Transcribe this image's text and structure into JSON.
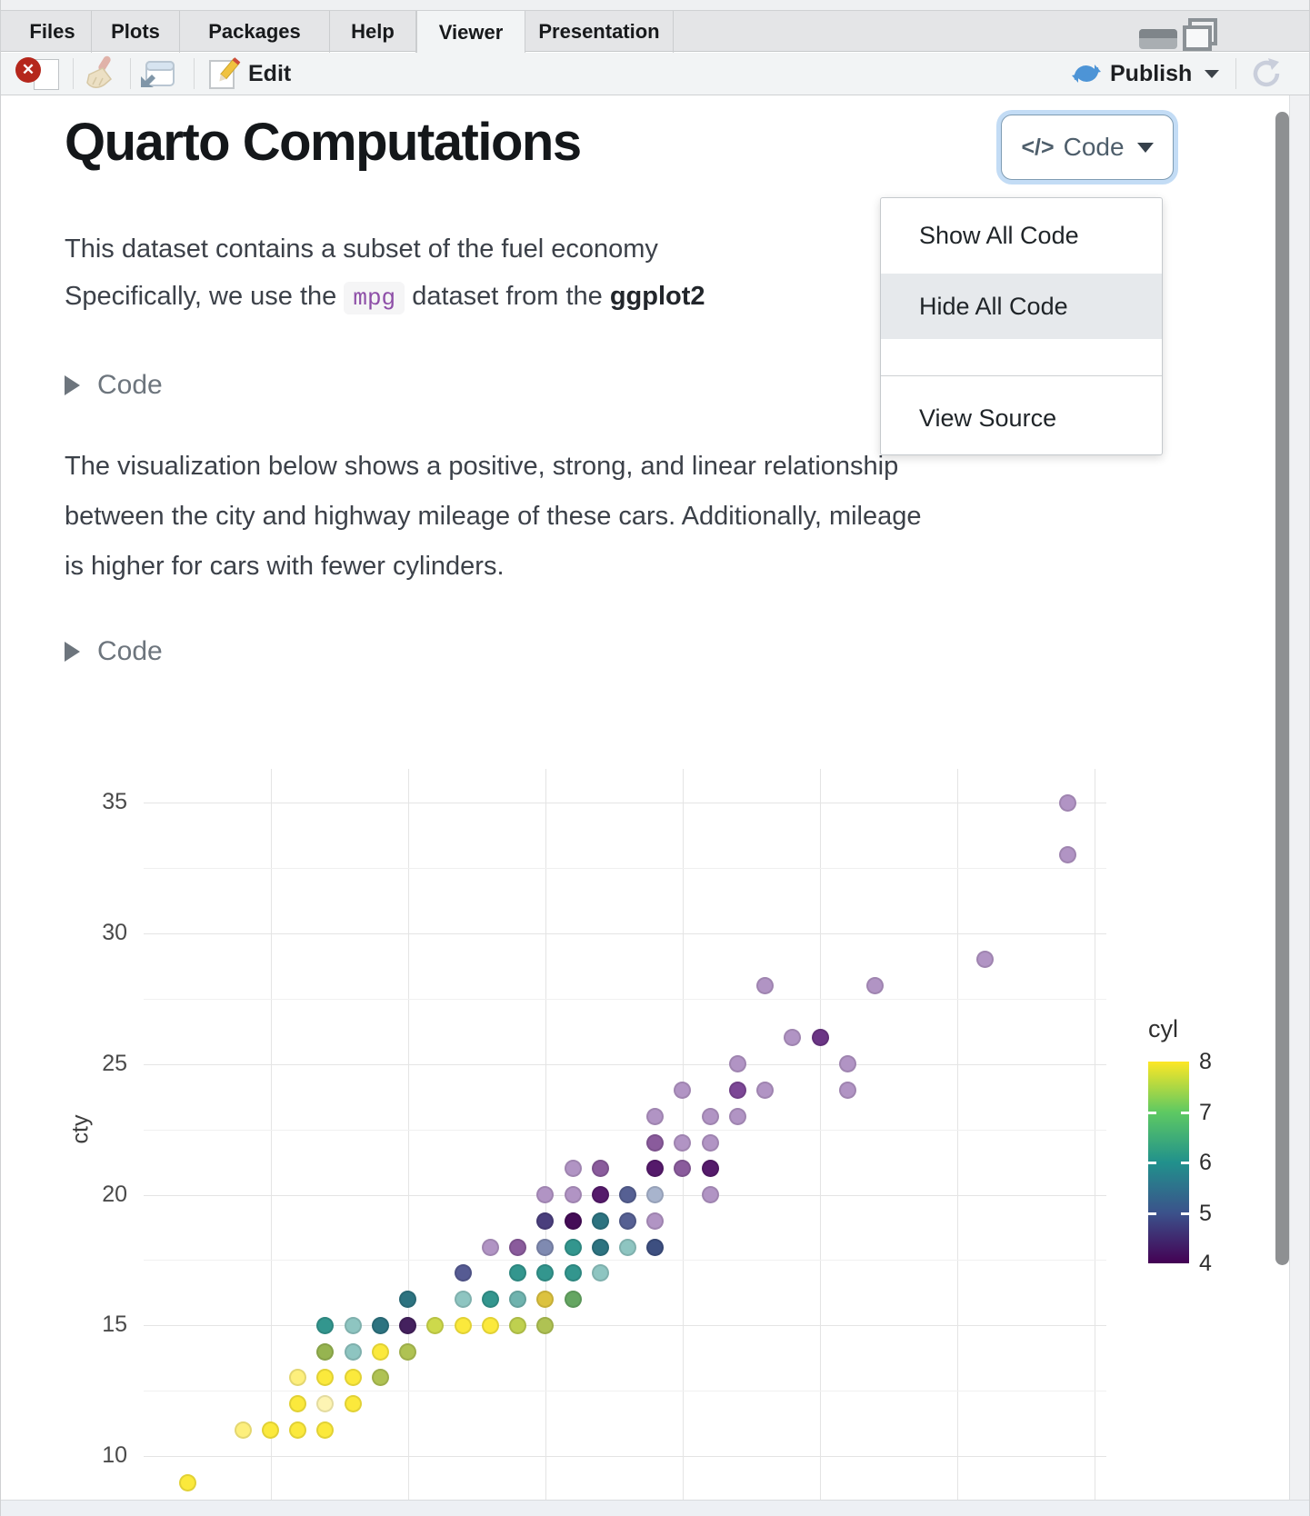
{
  "window": {
    "tabs": [
      {
        "label": "Files",
        "active": false
      },
      {
        "label": "Plots",
        "active": false
      },
      {
        "label": "Packages",
        "active": false
      },
      {
        "label": "Help",
        "active": false
      },
      {
        "label": "Viewer",
        "active": true
      },
      {
        "label": "Presentation",
        "active": false
      }
    ],
    "toolbar": {
      "edit_label": "Edit",
      "publish_label": "Publish",
      "icons": [
        "stop-icon",
        "broom-icon",
        "popout-icon",
        "edit-pencil-icon",
        "publish-icon",
        "refresh-icon"
      ]
    },
    "window_icons": [
      "minimize-icon",
      "maximize-icon"
    ]
  },
  "document": {
    "title": "Quarto Computations",
    "code_button": {
      "icon": "</>",
      "label": "Code"
    },
    "menu": {
      "items": [
        "Show All Code",
        "Hide All Code",
        "View Source"
      ],
      "highlighted": "Hide All Code"
    },
    "paragraph1": {
      "line1": "This dataset contains a subset of the fuel economy",
      "line2_prefix": "Specifically, we use the",
      "inline_code": "mpg",
      "line2_mid": "dataset from the",
      "line2_bold": "ggplot2"
    },
    "code_fold_label": "Code",
    "paragraph2_lines": [
      "The visualization below shows a positive, strong, and linear relationship",
      "between the city and highway mileage of these cars. Additionally, mileage",
      "is higher for cars with fewer cylinders."
    ]
  },
  "chart_data": {
    "type": "scatter",
    "title": "",
    "xlabel": "",
    "ylabel": "cty",
    "x_gridlines": [
      15,
      20,
      25,
      30,
      35,
      40,
      45
    ],
    "y_ticks": [
      35,
      30,
      25,
      20,
      15,
      10
    ],
    "y_minor_gridlines": [
      12.5,
      17.5,
      22.5,
      27.5,
      32.5
    ],
    "xlim": [
      10.4,
      45.4
    ],
    "ylim": [
      7.1,
      36.3
    ],
    "legend": {
      "title": "cyl",
      "position": "right",
      "tick_labels": [
        8,
        7,
        6,
        5,
        4
      ],
      "gradient_top_to_bottom": [
        "#fde725",
        "#5ec962",
        "#21918c",
        "#3b528b",
        "#440154"
      ]
    },
    "point_alpha_note": "colors below are alpha-blended as rendered",
    "points": [
      [
        44,
        35,
        "#b194c4"
      ],
      [
        44,
        33,
        "#b194c4"
      ],
      [
        41,
        29,
        "#b194c4"
      ],
      [
        33,
        28,
        "#b194c4"
      ],
      [
        37,
        28,
        "#b194c4"
      ],
      [
        34,
        26,
        "#b194c4"
      ],
      [
        35,
        26,
        "#6b3585"
      ],
      [
        32,
        25,
        "#b194c4"
      ],
      [
        36,
        25,
        "#b194c4"
      ],
      [
        30,
        24,
        "#b194c4"
      ],
      [
        32,
        24,
        "#7c4796"
      ],
      [
        33,
        24,
        "#b194c4"
      ],
      [
        36,
        24,
        "#b194c4"
      ],
      [
        29,
        23,
        "#b194c4"
      ],
      [
        31,
        23,
        "#b194c4"
      ],
      [
        32,
        23,
        "#b194c4"
      ],
      [
        29,
        22,
        "#8a5b9c"
      ],
      [
        30,
        22,
        "#b194c4"
      ],
      [
        31,
        22,
        "#b194c4"
      ],
      [
        26,
        21,
        "#b194c4"
      ],
      [
        27,
        21,
        "#8a5b9c"
      ],
      [
        29,
        21,
        "#551a6b"
      ],
      [
        30,
        21,
        "#8a5b9c"
      ],
      [
        31,
        21,
        "#551a6b"
      ],
      [
        25,
        20,
        "#b194c4"
      ],
      [
        26,
        20,
        "#b194c4"
      ],
      [
        27,
        20,
        "#551a6b"
      ],
      [
        28,
        20,
        "#566093"
      ],
      [
        29,
        20,
        "#a8b4cd"
      ],
      [
        31,
        20,
        "#b194c4"
      ],
      [
        25,
        19,
        "#4a3f7d"
      ],
      [
        26,
        19,
        "#440c57"
      ],
      [
        27,
        19,
        "#2d7380"
      ],
      [
        28,
        19,
        "#566093"
      ],
      [
        29,
        19,
        "#b194c4"
      ],
      [
        23,
        18,
        "#b194c4"
      ],
      [
        24,
        18,
        "#8a5b9c"
      ],
      [
        25,
        18,
        "#7f8ab1"
      ],
      [
        26,
        18,
        "#33968e"
      ],
      [
        27,
        18,
        "#2d7380"
      ],
      [
        28,
        18,
        "#8ec5c1"
      ],
      [
        29,
        18,
        "#3d4f80"
      ],
      [
        22,
        17,
        "#565b93"
      ],
      [
        24,
        17,
        "#33968e"
      ],
      [
        25,
        17,
        "#33968e"
      ],
      [
        26,
        17,
        "#33968e"
      ],
      [
        27,
        17,
        "#8ec5c1"
      ],
      [
        20,
        16,
        "#2d7380"
      ],
      [
        22,
        16,
        "#8ec5c1"
      ],
      [
        23,
        16,
        "#33968e"
      ],
      [
        24,
        16,
        "#6fb3ae"
      ],
      [
        25,
        16,
        "#dcc23f"
      ],
      [
        26,
        16,
        "#65a662"
      ],
      [
        17,
        15,
        "#33968e"
      ],
      [
        18,
        15,
        "#8ec5c1"
      ],
      [
        19,
        15,
        "#2d7380"
      ],
      [
        20,
        15,
        "#44215e"
      ],
      [
        21,
        15,
        "#cdd94b"
      ],
      [
        22,
        15,
        "#fbe93c"
      ],
      [
        23,
        15,
        "#fbe93c"
      ],
      [
        24,
        15,
        "#bfd04f"
      ],
      [
        25,
        15,
        "#afc253"
      ],
      [
        17,
        14,
        "#96b450"
      ],
      [
        18,
        14,
        "#8ec5c1"
      ],
      [
        19,
        14,
        "#fbe93c"
      ],
      [
        20,
        14,
        "#afc253"
      ],
      [
        16,
        13,
        "#fdef7d"
      ],
      [
        17,
        13,
        "#fbe93c"
      ],
      [
        18,
        13,
        "#fbe93c"
      ],
      [
        19,
        13,
        "#afc253"
      ],
      [
        16,
        12,
        "#fbe93c"
      ],
      [
        17,
        12,
        "#fdf4b3"
      ],
      [
        18,
        12,
        "#fbe93c"
      ],
      [
        14,
        11,
        "#fdef7d"
      ],
      [
        15,
        11,
        "#fbe93c"
      ],
      [
        16,
        11,
        "#fbe93c"
      ],
      [
        17,
        11,
        "#fbe93c"
      ],
      [
        12,
        9,
        "#fbe93c"
      ]
    ]
  }
}
